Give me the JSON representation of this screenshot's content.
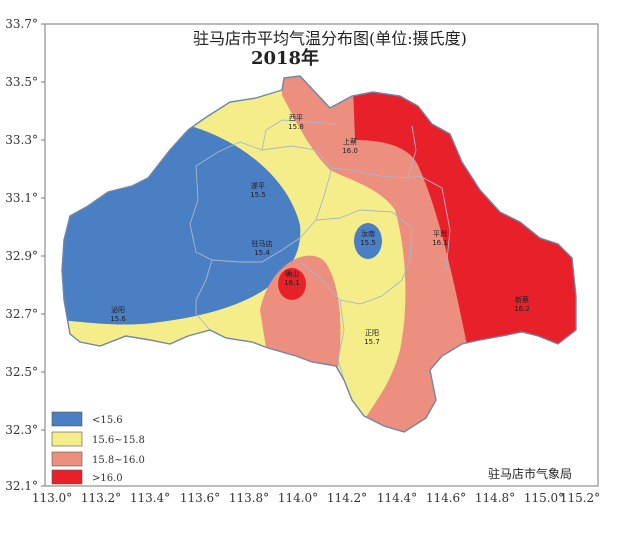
{
  "title": "驻马店市平均气温分布图(单位:摄氏度)",
  "year": "2018年",
  "credit": "驻马店市气象局",
  "axes": {
    "lat_ticks": [
      "33.7°",
      "33.5°",
      "33.3°",
      "33.1°",
      "32.9°",
      "32.7°",
      "32.5°",
      "32.3°",
      "32.1°"
    ],
    "lon_ticks": [
      "113.0°",
      "113.2°",
      "113.4°",
      "113.6°",
      "113.8°",
      "114.0°",
      "114.2°",
      "114.4°",
      "114.6°",
      "114.8°",
      "115.0°",
      "115.2°"
    ]
  },
  "legend": [
    {
      "label": "<15.6",
      "color": "#4a7fc4"
    },
    {
      "label": "15.6~15.8",
      "color": "#f5ec8a"
    },
    {
      "label": "15.8~16.0",
      "color": "#ec8f7f"
    },
    {
      "label": ">16.0",
      "color": "#e8202a"
    }
  ],
  "stations": [
    {
      "name": "西平",
      "value": "15.8"
    },
    {
      "name": "上蔡",
      "value": "16.0"
    },
    {
      "name": "遂平",
      "value": "15.5"
    },
    {
      "name": "汝南",
      "value": "15.5"
    },
    {
      "name": "平舆",
      "value": "16.1"
    },
    {
      "name": "驻马店",
      "value": "15.4"
    },
    {
      "name": "确山",
      "value": "16.1"
    },
    {
      "name": "泌阳",
      "value": "15.6"
    },
    {
      "name": "新蔡",
      "value": "16.2"
    },
    {
      "name": "正阳",
      "value": "15.7"
    }
  ]
}
